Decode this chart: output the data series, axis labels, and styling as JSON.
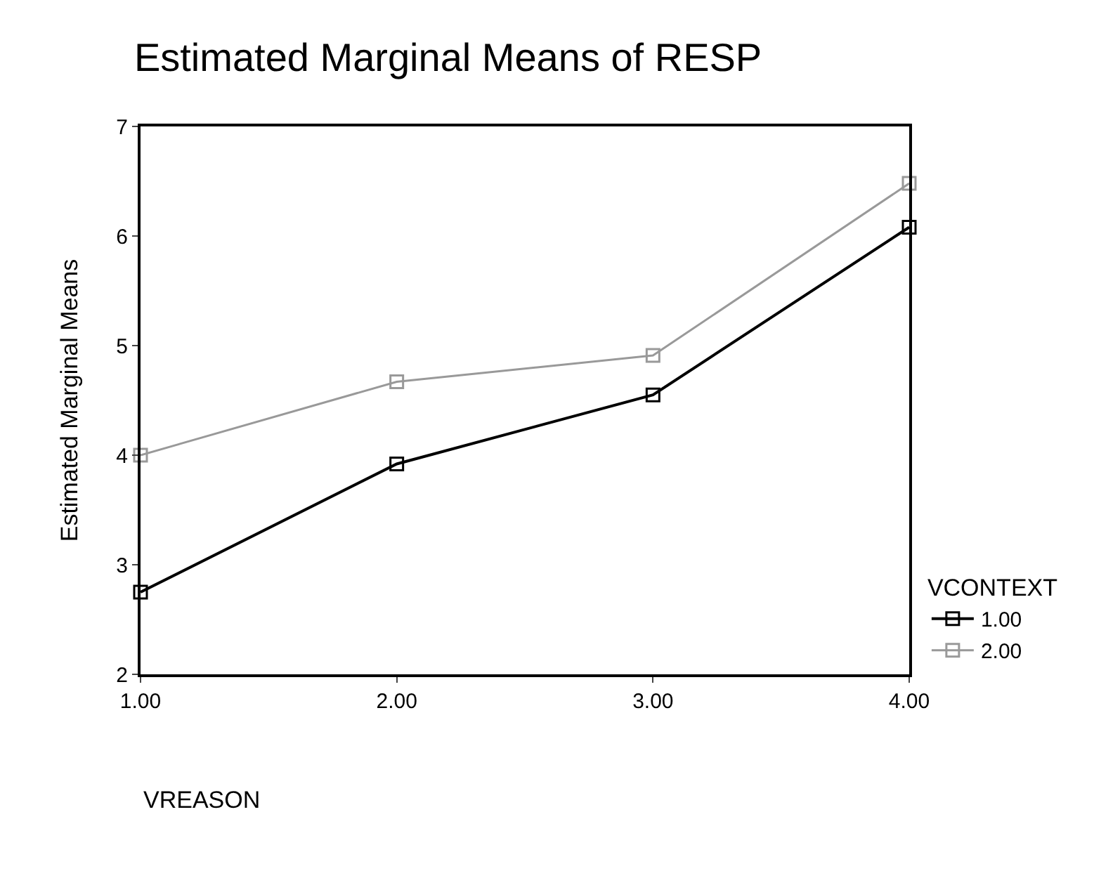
{
  "chart_data": {
    "type": "line",
    "title": "Estimated Marginal Means of RESP",
    "xlabel": "VREASON",
    "ylabel": "Estimated Marginal Means",
    "legend_title": "VCONTEXT",
    "x": [
      1,
      2,
      3,
      4
    ],
    "series": [
      {
        "name": "1.00",
        "color": "#000000",
        "values": [
          2.75,
          3.92,
          4.55,
          6.08
        ]
      },
      {
        "name": "2.00",
        "color": "#999999",
        "values": [
          4.0,
          4.67,
          4.91,
          6.48
        ]
      }
    ],
    "xlim": [
      1,
      4
    ],
    "xticks": [
      {
        "value": 1,
        "label": "1.00"
      },
      {
        "value": 2,
        "label": "2.00"
      },
      {
        "value": 3,
        "label": "3.00"
      },
      {
        "value": 4,
        "label": "4.00"
      }
    ],
    "ylim": [
      2,
      7
    ],
    "yticks": [
      2,
      3,
      4,
      5,
      6,
      7
    ],
    "grid": false,
    "legend": "right",
    "marker": "square",
    "line_style": "solid"
  }
}
